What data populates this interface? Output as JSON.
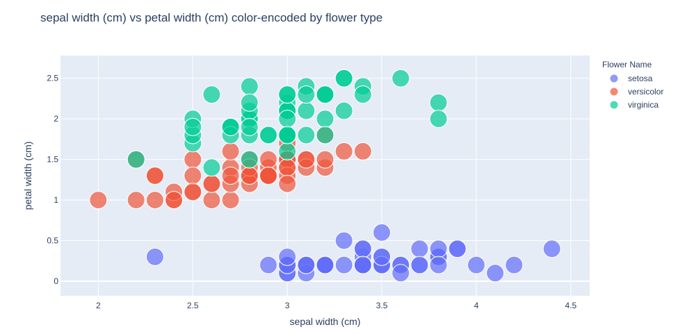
{
  "chart_data": {
    "type": "scatter",
    "title": "sepal width (cm) vs petal width (cm) color-encoded by flower type",
    "xlabel": "sepal width (cm)",
    "ylabel": "petal width (cm)",
    "xlim": [
      1.8,
      4.6
    ],
    "ylim": [
      -0.18,
      2.78
    ],
    "x_ticks": [
      2,
      2.5,
      3,
      3.5,
      4,
      4.5
    ],
    "y_ticks": [
      0,
      0.5,
      1,
      1.5,
      2,
      2.5
    ],
    "x_tick_labels": [
      "2",
      "2.5",
      "3",
      "3.5",
      "4",
      "4.5"
    ],
    "y_tick_labels": [
      "0",
      "0.5",
      "1",
      "1.5",
      "2",
      "2.5"
    ],
    "grid": true,
    "legend_title": "Flower Name",
    "legend_position": "top-right",
    "background": "#e5ecf6",
    "series": [
      {
        "name": "setosa",
        "color": "#636efa",
        "points": [
          [
            3.5,
            0.2
          ],
          [
            3.0,
            0.2
          ],
          [
            3.2,
            0.2
          ],
          [
            3.1,
            0.2
          ],
          [
            3.6,
            0.2
          ],
          [
            3.9,
            0.4
          ],
          [
            3.4,
            0.3
          ],
          [
            3.4,
            0.2
          ],
          [
            2.9,
            0.2
          ],
          [
            3.1,
            0.1
          ],
          [
            3.7,
            0.2
          ],
          [
            3.4,
            0.2
          ],
          [
            3.0,
            0.1
          ],
          [
            3.0,
            0.1
          ],
          [
            4.0,
            0.2
          ],
          [
            4.4,
            0.4
          ],
          [
            3.9,
            0.4
          ],
          [
            3.5,
            0.3
          ],
          [
            3.8,
            0.3
          ],
          [
            3.8,
            0.3
          ],
          [
            3.4,
            0.2
          ],
          [
            3.7,
            0.4
          ],
          [
            3.6,
            0.2
          ],
          [
            3.3,
            0.5
          ],
          [
            3.4,
            0.2
          ],
          [
            3.0,
            0.2
          ],
          [
            3.4,
            0.4
          ],
          [
            3.5,
            0.2
          ],
          [
            3.4,
            0.2
          ],
          [
            3.2,
            0.2
          ],
          [
            3.1,
            0.2
          ],
          [
            3.4,
            0.4
          ],
          [
            4.1,
            0.1
          ],
          [
            4.2,
            0.2
          ],
          [
            3.1,
            0.2
          ],
          [
            3.2,
            0.2
          ],
          [
            3.5,
            0.2
          ],
          [
            3.6,
            0.1
          ],
          [
            3.0,
            0.2
          ],
          [
            3.4,
            0.2
          ],
          [
            3.5,
            0.3
          ],
          [
            2.3,
            0.3
          ],
          [
            3.2,
            0.2
          ],
          [
            3.5,
            0.6
          ],
          [
            3.8,
            0.4
          ],
          [
            3.0,
            0.3
          ],
          [
            3.8,
            0.2
          ],
          [
            3.2,
            0.2
          ],
          [
            3.7,
            0.2
          ],
          [
            3.3,
            0.2
          ]
        ]
      },
      {
        "name": "versicolor",
        "color": "#ef553b",
        "points": [
          [
            3.2,
            1.4
          ],
          [
            3.2,
            1.5
          ],
          [
            3.1,
            1.5
          ],
          [
            2.3,
            1.3
          ],
          [
            2.8,
            1.5
          ],
          [
            2.8,
            1.3
          ],
          [
            3.3,
            1.6
          ],
          [
            2.4,
            1.0
          ],
          [
            2.9,
            1.3
          ],
          [
            2.7,
            1.4
          ],
          [
            2.0,
            1.0
          ],
          [
            3.0,
            1.5
          ],
          [
            2.2,
            1.0
          ],
          [
            2.9,
            1.4
          ],
          [
            2.9,
            1.3
          ],
          [
            3.1,
            1.4
          ],
          [
            3.0,
            1.5
          ],
          [
            2.7,
            1.0
          ],
          [
            2.2,
            1.5
          ],
          [
            2.5,
            1.1
          ],
          [
            3.2,
            1.8
          ],
          [
            2.8,
            1.3
          ],
          [
            2.5,
            1.5
          ],
          [
            2.8,
            1.2
          ],
          [
            2.9,
            1.3
          ],
          [
            3.0,
            1.4
          ],
          [
            2.8,
            1.4
          ],
          [
            3.0,
            1.7
          ],
          [
            2.9,
            1.5
          ],
          [
            2.6,
            1.0
          ],
          [
            2.4,
            1.1
          ],
          [
            2.4,
            1.0
          ],
          [
            2.7,
            1.2
          ],
          [
            2.7,
            1.6
          ],
          [
            3.0,
            1.5
          ],
          [
            3.4,
            1.6
          ],
          [
            3.1,
            1.5
          ],
          [
            2.3,
            1.3
          ],
          [
            3.0,
            1.3
          ],
          [
            2.5,
            1.3
          ],
          [
            2.6,
            1.2
          ],
          [
            3.0,
            1.4
          ],
          [
            2.6,
            1.2
          ],
          [
            2.3,
            1.0
          ],
          [
            2.7,
            1.3
          ],
          [
            3.0,
            1.2
          ],
          [
            2.9,
            1.3
          ],
          [
            2.9,
            1.3
          ],
          [
            2.5,
            1.1
          ],
          [
            2.8,
            1.3
          ]
        ]
      },
      {
        "name": "virginica",
        "color": "#00cc96",
        "points": [
          [
            3.3,
            2.5
          ],
          [
            2.7,
            1.9
          ],
          [
            3.0,
            2.1
          ],
          [
            2.9,
            1.8
          ],
          [
            3.0,
            2.2
          ],
          [
            3.0,
            2.1
          ],
          [
            2.5,
            1.7
          ],
          [
            2.9,
            1.8
          ],
          [
            2.5,
            1.8
          ],
          [
            3.6,
            2.5
          ],
          [
            3.2,
            2.0
          ],
          [
            2.7,
            1.9
          ],
          [
            3.0,
            2.1
          ],
          [
            2.5,
            2.0
          ],
          [
            2.8,
            2.4
          ],
          [
            3.2,
            2.3
          ],
          [
            3.0,
            1.8
          ],
          [
            3.8,
            2.2
          ],
          [
            2.6,
            2.3
          ],
          [
            2.2,
            1.5
          ],
          [
            3.2,
            2.3
          ],
          [
            2.8,
            2.0
          ],
          [
            2.8,
            2.0
          ],
          [
            2.7,
            1.8
          ],
          [
            3.3,
            2.1
          ],
          [
            3.2,
            1.8
          ],
          [
            2.8,
            1.8
          ],
          [
            3.0,
            1.8
          ],
          [
            2.8,
            2.1
          ],
          [
            3.0,
            1.6
          ],
          [
            2.8,
            1.9
          ],
          [
            3.8,
            2.0
          ],
          [
            2.8,
            2.2
          ],
          [
            2.8,
            1.5
          ],
          [
            2.6,
            1.4
          ],
          [
            3.0,
            2.3
          ],
          [
            3.4,
            2.4
          ],
          [
            3.1,
            1.8
          ],
          [
            3.0,
            1.8
          ],
          [
            3.1,
            2.1
          ],
          [
            3.1,
            2.4
          ],
          [
            3.1,
            2.3
          ],
          [
            2.7,
            1.9
          ],
          [
            3.2,
            2.3
          ],
          [
            3.3,
            2.5
          ],
          [
            3.0,
            2.3
          ],
          [
            2.5,
            1.9
          ],
          [
            3.0,
            2.0
          ],
          [
            3.4,
            2.3
          ],
          [
            3.0,
            1.8
          ]
        ]
      }
    ]
  }
}
